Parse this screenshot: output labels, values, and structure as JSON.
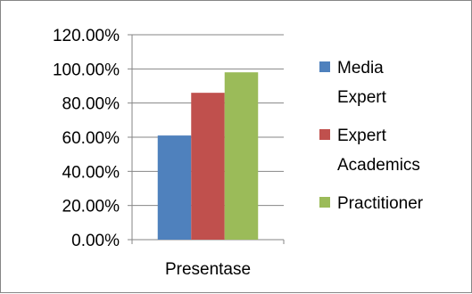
{
  "chart_data": {
    "type": "bar",
    "categories": [
      "Presentase"
    ],
    "series": [
      {
        "name": "Media Expert",
        "legend_lines": [
          "Media",
          "Expert"
        ],
        "values": [
          61
        ],
        "color": "#4f81bd"
      },
      {
        "name": "Expert Academics",
        "legend_lines": [
          "Expert",
          "Academics"
        ],
        "values": [
          86
        ],
        "color": "#c0504d"
      },
      {
        "name": "Practitioner",
        "legend_lines": [
          "Practitioner"
        ],
        "values": [
          98
        ],
        "color": "#9bbb59"
      }
    ],
    "ylim": [
      0,
      120
    ],
    "yticks": [
      0,
      20,
      40,
      60,
      80,
      100,
      120
    ],
    "ytick_labels": [
      "0.00%",
      "20.00%",
      "40.00%",
      "60.00%",
      "80.00%",
      "100.00%",
      "120.00%"
    ],
    "grid": true,
    "legend": "right"
  }
}
